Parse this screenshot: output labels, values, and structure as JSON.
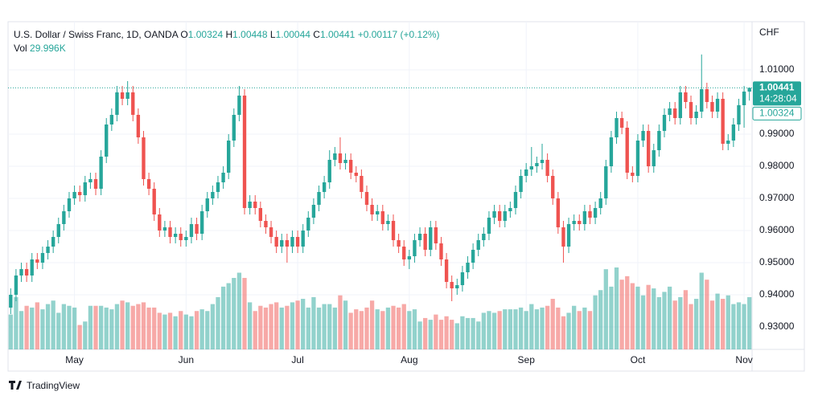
{
  "chart_data": {
    "type": "candlestick",
    "title": "U.S. Dollar / Swiss Franc, 1D, OANDA",
    "legend_keys": [
      "O",
      "H",
      "L",
      "C"
    ],
    "change_label": "+0.00117 (+0.12%)",
    "volume_label": "29.996K",
    "countdown": "14:28:04",
    "currency": "CHF",
    "brand": "TradingView",
    "categories": [
      null,
      null,
      null,
      null,
      null,
      null,
      null,
      null,
      null,
      null,
      null,
      null,
      "May",
      null,
      null,
      null,
      null,
      null,
      null,
      null,
      null,
      null,
      null,
      null,
      null,
      null,
      null,
      null,
      null,
      null,
      null,
      null,
      null,
      "Jun",
      null,
      null,
      null,
      null,
      null,
      null,
      null,
      null,
      null,
      null,
      null,
      null,
      null,
      null,
      null,
      null,
      null,
      null,
      null,
      null,
      "Jul",
      null,
      null,
      null,
      null,
      null,
      null,
      null,
      null,
      null,
      null,
      null,
      null,
      null,
      null,
      null,
      null,
      null,
      null,
      null,
      null,
      "Aug",
      null,
      null,
      null,
      null,
      null,
      null,
      null,
      null,
      null,
      null,
      null,
      null,
      null,
      null,
      null,
      null,
      null,
      null,
      null,
      null,
      null,
      "Sep",
      null,
      null,
      null,
      null,
      null,
      null,
      null,
      null,
      null,
      null,
      null,
      null,
      null,
      null,
      null,
      null,
      null,
      null,
      null,
      null,
      "Oct",
      null,
      null,
      null,
      null,
      null,
      null,
      null,
      null,
      null,
      null,
      null,
      null,
      null,
      null,
      null,
      null,
      null,
      null,
      null,
      "Nov",
      null
    ],
    "open": [
      0.936,
      0.94,
      0.946,
      0.948,
      0.946,
      0.951,
      0.95,
      0.953,
      0.955,
      0.958,
      0.962,
      0.966,
      0.97,
      0.972,
      0.971,
      0.975,
      0.976,
      0.973,
      0.983,
      0.993,
      0.996,
      1.003,
      1.001,
      1.003,
      0.996,
      0.989,
      0.976,
      0.973,
      0.965,
      0.96,
      0.961,
      0.958,
      0.959,
      0.957,
      0.958,
      0.962,
      0.959,
      0.966,
      0.97,
      0.972,
      0.975,
      0.978,
      0.988,
      0.996,
      1.002,
      0.967,
      0.969,
      0.967,
      0.963,
      0.961,
      0.958,
      0.955,
      0.957,
      0.955,
      0.958,
      0.955,
      0.96,
      0.964,
      0.968,
      0.972,
      0.975,
      0.982,
      0.984,
      0.981,
      0.982,
      0.978,
      0.977,
      0.972,
      0.968,
      0.965,
      0.966,
      0.962,
      0.963,
      0.957,
      0.955,
      0.951,
      0.952,
      0.957,
      0.959,
      0.954,
      0.961,
      0.956,
      0.951,
      0.944,
      0.942,
      0.943,
      0.947,
      0.95,
      0.954,
      0.957,
      0.959,
      0.964,
      0.966,
      0.963,
      0.966,
      0.967,
      0.972,
      0.977,
      0.979,
      0.98,
      0.981,
      0.982,
      0.977,
      0.97,
      0.961,
      0.955,
      0.962,
      0.963,
      0.962,
      0.966,
      0.964,
      0.967,
      0.97,
      0.98,
      0.989,
      0.995,
      0.992,
      0.978,
      0.977,
      0.988,
      0.991,
      0.98,
      0.985,
      0.991,
      0.996,
      0.998,
      0.995,
      1.003,
      1.0,
      0.995,
      0.997,
      1.004,
      1.0,
      0.997,
      1.001,
      0.987,
      0.988,
      0.993,
      0.999,
      1.00324
    ],
    "high": [
      0.942,
      0.948,
      0.95,
      0.95,
      0.953,
      0.953,
      0.955,
      0.957,
      0.96,
      0.964,
      0.968,
      0.972,
      0.974,
      0.974,
      0.977,
      0.978,
      0.978,
      0.985,
      0.995,
      0.998,
      1.005,
      1.005,
      1.0065,
      1.005,
      0.998,
      0.991,
      0.978,
      0.975,
      0.967,
      0.963,
      0.963,
      0.961,
      0.961,
      0.96,
      0.964,
      0.964,
      0.968,
      0.972,
      0.974,
      0.977,
      0.98,
      0.99,
      0.998,
      1.005,
      1.004,
      0.971,
      0.971,
      0.969,
      0.965,
      0.963,
      0.96,
      0.959,
      0.959,
      0.96,
      0.96,
      0.962,
      0.966,
      0.97,
      0.974,
      0.977,
      0.985,
      0.986,
      0.989,
      0.984,
      0.984,
      0.98,
      0.979,
      0.974,
      0.97,
      0.968,
      0.968,
      0.965,
      0.965,
      0.959,
      0.957,
      0.954,
      0.959,
      0.961,
      0.961,
      0.963,
      0.963,
      0.958,
      0.953,
      0.946,
      0.945,
      0.949,
      0.952,
      0.956,
      0.959,
      0.961,
      0.966,
      0.968,
      0.968,
      0.968,
      0.969,
      0.974,
      0.979,
      0.981,
      0.986,
      0.983,
      0.987,
      0.984,
      0.979,
      0.972,
      0.963,
      0.964,
      0.965,
      0.965,
      0.968,
      0.968,
      0.969,
      0.972,
      0.982,
      0.991,
      0.997,
      0.997,
      0.994,
      0.98,
      0.99,
      0.993,
      0.993,
      0.987,
      0.993,
      0.998,
      1.0,
      1.0,
      1.005,
      1.005,
      1.002,
      0.999,
      1.0148,
      1.006,
      1.002,
      1.003,
      1.003,
      0.99,
      0.995,
      1.001,
      1.005,
      1.00448
    ],
    "low": [
      0.934,
      0.938,
      0.944,
      0.944,
      0.944,
      0.948,
      0.948,
      0.951,
      0.953,
      0.956,
      0.96,
      0.964,
      0.968,
      0.969,
      0.969,
      0.973,
      0.971,
      0.971,
      0.981,
      0.991,
      0.994,
      0.999,
      0.999,
      0.994,
      0.987,
      0.974,
      0.971,
      0.963,
      0.958,
      0.958,
      0.956,
      0.956,
      0.955,
      0.955,
      0.956,
      0.957,
      0.957,
      0.964,
      0.968,
      0.97,
      0.973,
      0.976,
      0.986,
      0.994,
      0.965,
      0.965,
      0.965,
      0.961,
      0.959,
      0.956,
      0.953,
      0.953,
      0.95,
      0.953,
      0.953,
      0.953,
      0.958,
      0.962,
      0.966,
      0.97,
      0.973,
      0.98,
      0.979,
      0.979,
      0.976,
      0.975,
      0.97,
      0.966,
      0.963,
      0.963,
      0.96,
      0.96,
      0.955,
      0.953,
      0.949,
      0.948,
      0.95,
      0.955,
      0.952,
      0.952,
      0.954,
      0.949,
      0.942,
      0.938,
      0.94,
      0.941,
      0.945,
      0.948,
      0.952,
      0.955,
      0.957,
      0.962,
      0.961,
      0.961,
      0.964,
      0.965,
      0.97,
      0.975,
      0.977,
      0.978,
      0.979,
      0.975,
      0.968,
      0.959,
      0.95,
      0.953,
      0.96,
      0.96,
      0.96,
      0.962,
      0.962,
      0.965,
      0.968,
      0.978,
      0.987,
      0.99,
      0.976,
      0.975,
      0.975,
      0.986,
      0.978,
      0.978,
      0.983,
      0.989,
      0.994,
      0.993,
      0.993,
      0.998,
      0.993,
      0.993,
      0.995,
      0.998,
      0.995,
      0.995,
      0.985,
      0.985,
      0.986,
      0.991,
      0.992,
      1.00044
    ],
    "close": [
      0.94,
      0.946,
      0.948,
      0.946,
      0.951,
      0.95,
      0.953,
      0.955,
      0.958,
      0.962,
      0.966,
      0.97,
      0.972,
      0.971,
      0.975,
      0.976,
      0.973,
      0.983,
      0.993,
      0.996,
      1.003,
      1.001,
      1.003,
      0.996,
      0.989,
      0.976,
      0.973,
      0.965,
      0.96,
      0.961,
      0.958,
      0.959,
      0.957,
      0.958,
      0.962,
      0.959,
      0.966,
      0.97,
      0.972,
      0.975,
      0.978,
      0.988,
      0.996,
      1.002,
      0.967,
      0.969,
      0.967,
      0.963,
      0.961,
      0.958,
      0.955,
      0.957,
      0.955,
      0.958,
      0.955,
      0.96,
      0.964,
      0.968,
      0.972,
      0.975,
      0.982,
      0.984,
      0.981,
      0.982,
      0.978,
      0.977,
      0.972,
      0.968,
      0.965,
      0.966,
      0.962,
      0.963,
      0.957,
      0.955,
      0.951,
      0.952,
      0.957,
      0.959,
      0.954,
      0.961,
      0.956,
      0.951,
      0.944,
      0.942,
      0.943,
      0.947,
      0.95,
      0.954,
      0.957,
      0.959,
      0.964,
      0.966,
      0.963,
      0.966,
      0.967,
      0.972,
      0.977,
      0.979,
      0.98,
      0.981,
      0.982,
      0.977,
      0.97,
      0.961,
      0.955,
      0.962,
      0.963,
      0.962,
      0.966,
      0.964,
      0.967,
      0.97,
      0.98,
      0.989,
      0.995,
      0.992,
      0.978,
      0.977,
      0.988,
      0.991,
      0.98,
      0.985,
      0.991,
      0.996,
      0.998,
      0.995,
      1.003,
      1.0,
      0.995,
      0.997,
      1.004,
      1.0,
      0.997,
      1.001,
      0.987,
      0.988,
      0.993,
      0.999,
      1.00324,
      1.00441
    ],
    "volume": {
      "name": "Vol",
      "axis": "y2",
      "values": [
        20000,
        30000,
        22000,
        25000,
        24000,
        27000,
        23000,
        26000,
        28000,
        21000,
        26000,
        25000,
        24000,
        14000,
        16000,
        25000,
        25000,
        25000,
        24000,
        23000,
        26000,
        28000,
        27000,
        25000,
        26000,
        27000,
        24000,
        24000,
        21000,
        20000,
        21000,
        19000,
        22000,
        20000,
        19000,
        22000,
        23000,
        22000,
        26000,
        30000,
        36000,
        38000,
        41000,
        44000,
        41000,
        27000,
        22000,
        25000,
        24000,
        26000,
        27000,
        24000,
        25000,
        27000,
        28000,
        29000,
        24000,
        30000,
        24000,
        26000,
        26000,
        24000,
        31000,
        28000,
        21000,
        23000,
        22000,
        24000,
        28000,
        23000,
        22000,
        24000,
        25000,
        24000,
        26000,
        22000,
        23000,
        16000,
        18000,
        17000,
        20000,
        17000,
        19000,
        17000,
        15000,
        19000,
        18000,
        18000,
        16000,
        21000,
        22000,
        21000,
        22000,
        23000,
        23000,
        23000,
        24000,
        22000,
        26000,
        23000,
        24000,
        25000,
        29000,
        24000,
        19000,
        21000,
        25000,
        22000,
        24000,
        22000,
        31000,
        34000,
        46000,
        36000,
        47000,
        40000,
        42000,
        38000,
        36000,
        31000,
        37000,
        35000,
        30000,
        33000,
        36000,
        28000,
        30000,
        34000,
        26000,
        29000,
        44000,
        40000,
        28000,
        32000,
        29000,
        31000,
        26000,
        27000,
        26000,
        29996
      ]
    },
    "up_color": "#26a69a",
    "down_color": "#ef5350",
    "ylim": [
      0.923,
      1.025
    ],
    "yticks": [
      {
        "value": 0.93,
        "label": "0.93000"
      },
      {
        "value": 0.94,
        "label": "0.94000"
      },
      {
        "value": 0.95,
        "label": "0.95000"
      },
      {
        "value": 0.96,
        "label": "0.96000"
      },
      {
        "value": 0.97,
        "label": "0.97000"
      },
      {
        "value": 0.98,
        "label": "0.98000"
      },
      {
        "value": 0.99,
        "label": "0.99000"
      },
      {
        "value": 1.01,
        "label": "1.01000"
      }
    ],
    "y2lim": [
      0,
      188000
    ],
    "grid": true
  }
}
